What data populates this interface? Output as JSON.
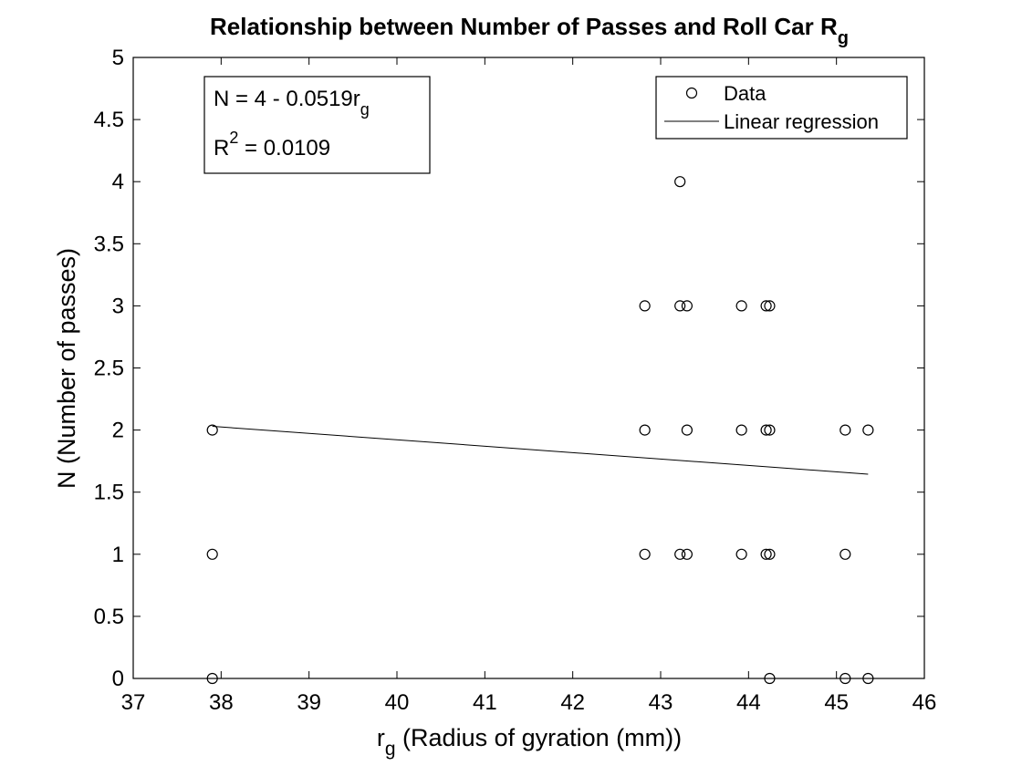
{
  "chart_data": {
    "type": "scatter",
    "title": "Relationship between Number of Passes and Roll Car R",
    "title_subscript": "g",
    "xlabel_main": "r",
    "xlabel_sub": "g",
    "xlabel_rest": " (Radius of gyration (mm))",
    "ylabel": "N (Number of passes)",
    "xlim": [
      37,
      46
    ],
    "ylim": [
      0,
      5
    ],
    "xticks": [
      37,
      38,
      39,
      40,
      41,
      42,
      43,
      44,
      45,
      46
    ],
    "yticks": [
      0,
      0.5,
      1,
      1.5,
      2,
      2.5,
      3,
      3.5,
      4,
      4.5,
      5
    ],
    "grid": false,
    "legend_position": "top-right",
    "series": [
      {
        "name": "Data",
        "marker": "open-circle",
        "points": [
          {
            "x": 37.9,
            "y": 0
          },
          {
            "x": 37.9,
            "y": 1
          },
          {
            "x": 37.9,
            "y": 2
          },
          {
            "x": 42.82,
            "y": 1
          },
          {
            "x": 42.82,
            "y": 2
          },
          {
            "x": 42.82,
            "y": 3
          },
          {
            "x": 43.22,
            "y": 1
          },
          {
            "x": 43.22,
            "y": 3
          },
          {
            "x": 43.22,
            "y": 4
          },
          {
            "x": 43.3,
            "y": 1
          },
          {
            "x": 43.3,
            "y": 2
          },
          {
            "x": 43.3,
            "y": 3
          },
          {
            "x": 43.92,
            "y": 1
          },
          {
            "x": 43.92,
            "y": 2
          },
          {
            "x": 43.92,
            "y": 3
          },
          {
            "x": 44.2,
            "y": 1
          },
          {
            "x": 44.2,
            "y": 2
          },
          {
            "x": 44.2,
            "y": 3
          },
          {
            "x": 44.24,
            "y": 0
          },
          {
            "x": 44.24,
            "y": 1
          },
          {
            "x": 44.24,
            "y": 2
          },
          {
            "x": 44.24,
            "y": 3
          },
          {
            "x": 45.1,
            "y": 0
          },
          {
            "x": 45.1,
            "y": 1
          },
          {
            "x": 45.1,
            "y": 2
          },
          {
            "x": 45.36,
            "y": 0
          },
          {
            "x": 45.36,
            "y": 2
          }
        ]
      },
      {
        "name": "Linear regression",
        "type": "line",
        "points": [
          {
            "x": 37.9,
            "y": 2.03
          },
          {
            "x": 45.36,
            "y": 1.645
          }
        ]
      }
    ],
    "annotation": {
      "eq_text": "N = 4 - 0.0519r",
      "eq_sub": "g",
      "r2_label": "R",
      "r2_sup": "2",
      "r2_value": " = 0.0109"
    }
  }
}
